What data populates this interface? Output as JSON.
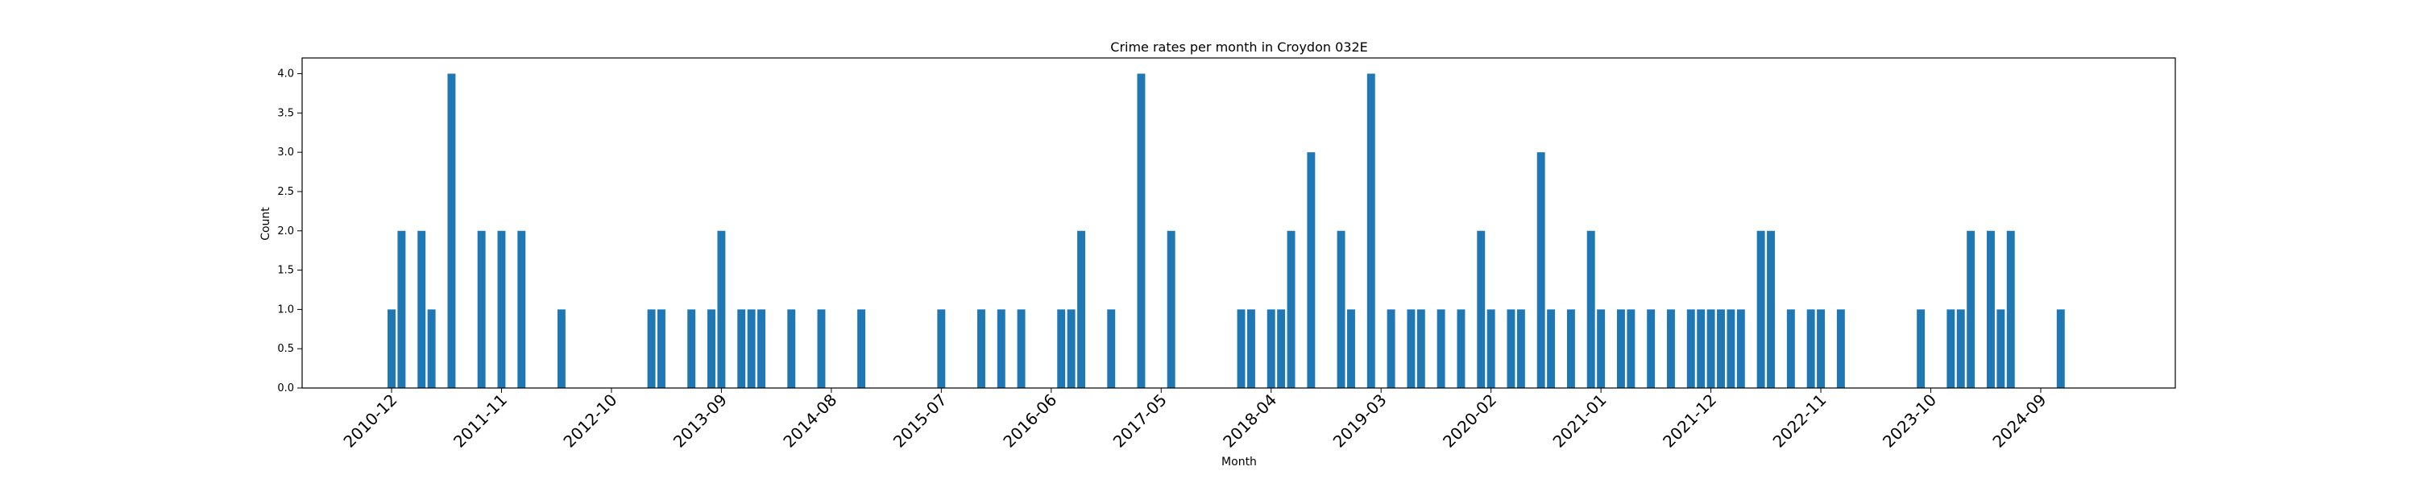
{
  "chart_data": {
    "type": "bar",
    "title": "Crime rates per month in Croydon 032E",
    "xlabel": "Month",
    "ylabel": "Count",
    "ylim": [
      0,
      4.2
    ],
    "yticks": [
      0.0,
      0.5,
      1.0,
      1.5,
      2.0,
      2.5,
      3.0,
      3.5,
      4.0
    ],
    "ytick_labels": [
      "0.0",
      "0.5",
      "1.0",
      "1.5",
      "2.0",
      "2.5",
      "3.0",
      "3.5",
      "4.0"
    ],
    "xticks": [
      "2010-12",
      "2011-11",
      "2012-10",
      "2013-09",
      "2014-08",
      "2015-07",
      "2016-06",
      "2017-05",
      "2018-04",
      "2019-03",
      "2020-02",
      "2021-01",
      "2021-12",
      "2022-11",
      "2023-10",
      "2024-09"
    ],
    "bar_color": "#1f77b4",
    "grid": false,
    "categories": [
      "2010-12",
      "2011-01",
      "2011-03",
      "2011-04",
      "2011-06",
      "2011-09",
      "2011-11",
      "2012-01",
      "2012-05",
      "2013-02",
      "2013-03",
      "2013-06",
      "2013-08",
      "2013-09",
      "2013-11",
      "2013-12",
      "2014-01",
      "2014-04",
      "2014-07",
      "2014-11",
      "2015-07",
      "2015-11",
      "2016-01",
      "2016-03",
      "2016-07",
      "2016-08",
      "2016-09",
      "2016-12",
      "2017-03",
      "2017-06",
      "2018-01",
      "2018-02",
      "2018-04",
      "2018-05",
      "2018-06",
      "2018-08",
      "2018-11",
      "2018-12",
      "2019-02",
      "2019-04",
      "2019-06",
      "2019-07",
      "2019-09",
      "2019-11",
      "2020-01",
      "2020-02",
      "2020-04",
      "2020-05",
      "2020-07",
      "2020-08",
      "2020-10",
      "2020-12",
      "2021-01",
      "2021-03",
      "2021-04",
      "2021-06",
      "2021-08",
      "2021-10",
      "2021-11",
      "2021-12",
      "2022-01",
      "2022-02",
      "2022-03",
      "2022-05",
      "2022-06",
      "2022-08",
      "2022-10",
      "2022-11",
      "2023-01",
      "2023-09",
      "2023-12",
      "2024-01",
      "2024-02",
      "2024-04",
      "2024-05",
      "2024-06",
      "2024-11"
    ],
    "values": [
      1,
      2,
      2,
      1,
      4,
      2,
      2,
      2,
      1,
      1,
      1,
      1,
      1,
      2,
      1,
      1,
      1,
      1,
      1,
      1,
      1,
      1,
      1,
      1,
      1,
      1,
      2,
      1,
      4,
      2,
      1,
      1,
      1,
      1,
      2,
      3,
      2,
      1,
      4,
      1,
      1,
      1,
      1,
      1,
      2,
      1,
      1,
      1,
      3,
      1,
      1,
      2,
      1,
      1,
      1,
      1,
      1,
      1,
      1,
      1,
      1,
      1,
      1,
      2,
      2,
      1,
      1,
      1,
      1,
      1,
      1,
      1,
      2,
      2,
      1,
      2,
      1
    ]
  }
}
